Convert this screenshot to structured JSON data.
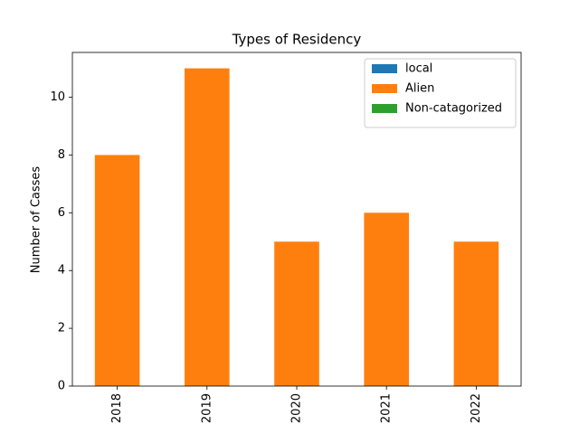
{
  "chart_data": {
    "type": "bar",
    "stacked": true,
    "title": "Types of Residency",
    "y_label": "Number of Casses",
    "categories": [
      "2018",
      "2019",
      "2020",
      "2021",
      "2022"
    ],
    "series": [
      {
        "name": "local",
        "color": "#1f77b4",
        "values": [
          0,
          0,
          0,
          0,
          0
        ]
      },
      {
        "name": "Alien",
        "color": "#ff7f0e",
        "values": [
          8,
          11,
          5,
          6,
          5
        ]
      },
      {
        "name": "Non-catagorized",
        "color": "#2ca02c",
        "values": [
          0,
          0,
          0,
          0,
          0
        ]
      }
    ],
    "ylim": [
      0,
      11.55
    ],
    "yticks": [
      0,
      2,
      4,
      6,
      8,
      10
    ],
    "legend": "upper right"
  }
}
